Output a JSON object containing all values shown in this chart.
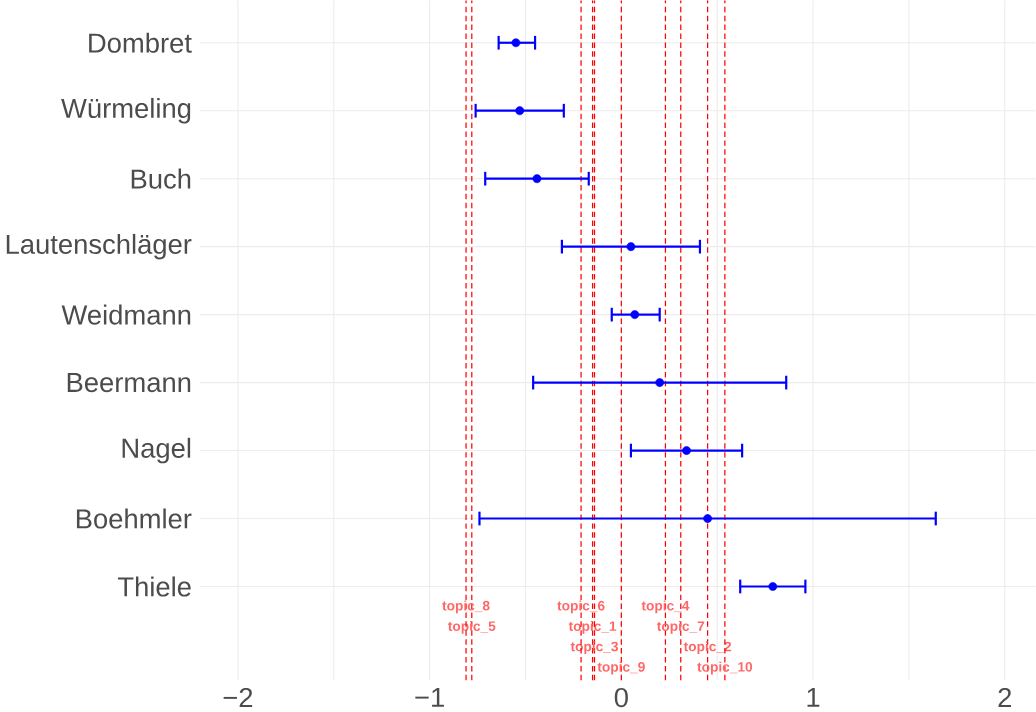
{
  "chart_data": {
    "type": "scatter",
    "orientation": "horizontal",
    "categories": [
      "Dombret",
      "Würmeling",
      "Buch",
      "Lautenschläger",
      "Weidmann",
      "Beermann",
      "Nagel",
      "Boehmler",
      "Thiele"
    ],
    "values": [
      -0.55,
      -0.53,
      -0.44,
      0.05,
      0.07,
      0.2,
      0.34,
      0.45,
      0.79
    ],
    "errors": [
      [
        -0.64,
        -0.45
      ],
      [
        -0.76,
        -0.3
      ],
      [
        -0.71,
        -0.17
      ],
      [
        -0.31,
        0.41
      ],
      [
        -0.05,
        0.2
      ],
      [
        -0.46,
        0.86
      ],
      [
        0.05,
        0.63
      ],
      [
        -0.74,
        1.64
      ],
      [
        0.62,
        0.96
      ]
    ],
    "color": "#0000ff",
    "marker": "circle",
    "grid": true,
    "xlim": [
      -2.2,
      2.16
    ],
    "xticks": [
      {
        "value": -2,
        "label": "−2"
      },
      {
        "value": -1.5,
        "label": null
      },
      {
        "value": -1,
        "label": "−1"
      },
      {
        "value": -0.5,
        "label": null
      },
      0,
      {
        "value": 0.5,
        "label": null
      },
      1,
      {
        "value": 1.5,
        "label": null
      },
      2
    ],
    "ref_lines": [
      {
        "axis": "x",
        "value": -0.15,
        "label": "topic_1",
        "color": "#ff0000",
        "line_style": "dashed"
      },
      {
        "axis": "x",
        "value": 0.45,
        "label": "topic_2",
        "color": "#ff0000",
        "line_style": "dashed"
      },
      {
        "axis": "x",
        "value": -0.14,
        "label": "topic_3",
        "color": "#ff0000",
        "line_style": "dashed"
      },
      {
        "axis": "x",
        "value": 0.23,
        "label": "topic_4",
        "color": "#ff0000",
        "line_style": "dashed"
      },
      {
        "axis": "x",
        "value": -0.78,
        "label": "topic_5",
        "color": "#ff0000",
        "line_style": "dashed"
      },
      {
        "axis": "x",
        "value": -0.21,
        "label": "topic_6",
        "color": "#ff0000",
        "line_style": "dashed"
      },
      {
        "axis": "x",
        "value": 0.31,
        "label": "topic_7",
        "color": "#ff0000",
        "line_style": "dashed"
      },
      {
        "axis": "x",
        "value": -0.81,
        "label": "topic_8",
        "color": "#ff0000",
        "line_style": "dashed"
      },
      {
        "axis": "x",
        "value": 0.0,
        "label": "topic_9",
        "color": "#ff0000",
        "line_style": "dashed"
      },
      {
        "axis": "x",
        "value": 0.54,
        "label": "topic_10",
        "color": "#ff0000",
        "line_style": "dashed"
      }
    ]
  }
}
